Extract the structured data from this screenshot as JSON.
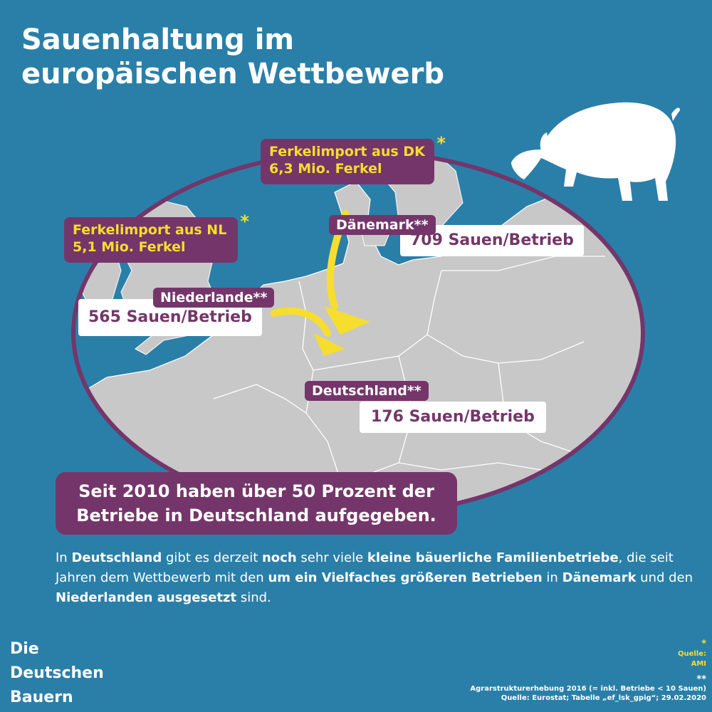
{
  "title": {
    "line1": "Sauenhaltung im",
    "line2": "europäischen Wettbewerb"
  },
  "imports": {
    "dk": {
      "line1": "Ferkelimport aus DK",
      "line2": "6,3 Mio. Ferkel",
      "mark": "*"
    },
    "nl": {
      "line1": "Ferkelimport aus NL",
      "line2": "5,1 Mio. Ferkel",
      "mark": "*"
    }
  },
  "countries": {
    "dk": {
      "name": "Dänemark**",
      "value": "709 Sauen/Betrieb"
    },
    "nl": {
      "name": "Niederlande**",
      "value": "565 Sauen/Betrieb"
    },
    "de": {
      "name": "Deutschland**",
      "value": "176 Sauen/Betrieb"
    }
  },
  "banner": {
    "line1": "Seit 2010 haben über 50 Prozent der",
    "line2": "Betriebe in Deutschland aufgegeben."
  },
  "description": {
    "segments": [
      {
        "t": "In ",
        "b": false
      },
      {
        "t": "Deutschland",
        "b": true
      },
      {
        "t": " gibt es derzeit ",
        "b": false
      },
      {
        "t": "noch",
        "b": true
      },
      {
        "t": " sehr viele ",
        "b": false
      },
      {
        "t": "kleine bäuerliche Familienbetriebe",
        "b": true
      },
      {
        "t": ", die seit Jahren dem Wettbewerb mit den ",
        "b": false
      },
      {
        "t": "um ein Vielfaches größeren Betrieben",
        "b": true
      },
      {
        "t": " in ",
        "b": false
      },
      {
        "t": "Dänemark",
        "b": true
      },
      {
        "t": " und den ",
        "b": false
      },
      {
        "t": "Niederlanden ausgesetzt",
        "b": true
      },
      {
        "t": " sind.",
        "b": false
      }
    ]
  },
  "logo": {
    "line1": "Die",
    "line2": "Deutschen",
    "line3": "Bauern"
  },
  "sources": {
    "ami_mark": "*",
    "ami_label": "Quelle:",
    "ami_name": "AMI",
    "eurostat_mark": "**",
    "eurostat_line1": "Agrarstrukturerhebung 2016 (= inkl. Betriebe < 10 Sauen)",
    "eurostat_line2": "Quelle: Eurostat; Tabelle „ef_lsk_gpig“; 29.02.2020"
  },
  "colors": {
    "background": "#2a7fa8",
    "accent_purple": "#74366a",
    "highlight_yellow": "#f7dd2e",
    "land_gray": "#c8c8c8"
  },
  "icons": {
    "animal": "pig-silhouette",
    "arrows": "yellow-flow-arrows"
  }
}
